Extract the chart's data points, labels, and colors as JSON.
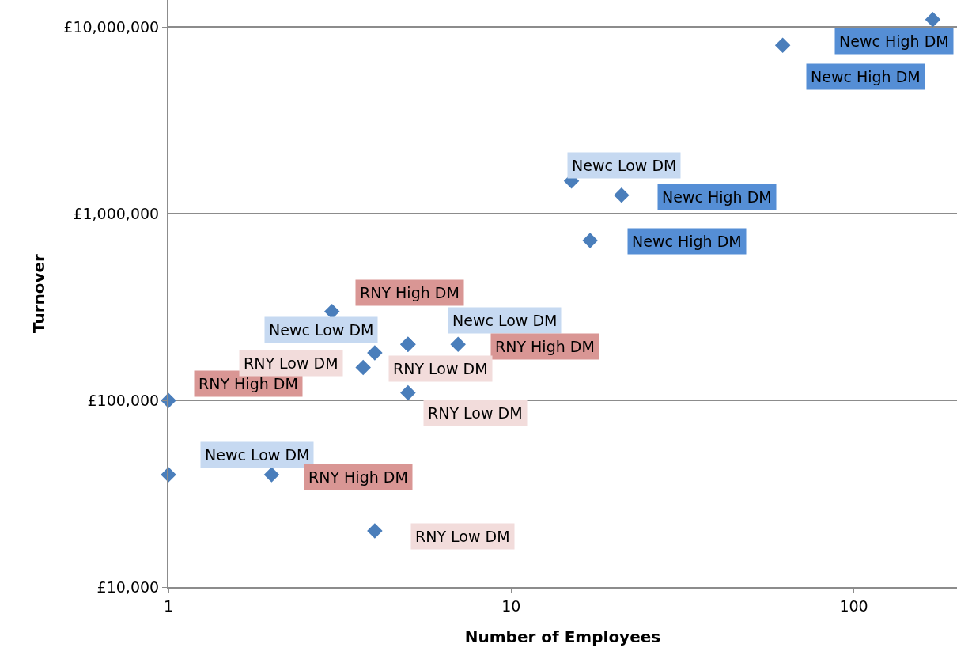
{
  "chart_data": {
    "type": "scatter",
    "xlabel": "Number of Employees",
    "ylabel": "Turnover",
    "log": "xy",
    "grid": "y",
    "marker": "diamond",
    "xlim": [
      1,
      200
    ],
    "xticks": [
      1,
      10,
      100
    ],
    "ylim": [
      10000,
      14000000
    ],
    "yticks": [
      {
        "value": 10000,
        "label": "£10,000"
      },
      {
        "value": 100000,
        "label": "£100,000"
      },
      {
        "value": 1000000,
        "label": "£1,000,000"
      },
      {
        "value": 10000000,
        "label": "£10,000,000"
      }
    ],
    "series": [
      {
        "name": "Newc High DM",
        "color": "#4a7ebb",
        "x": [
          170,
          62,
          21,
          17
        ],
        "values": [
          11000000,
          8000000,
          1260000,
          720000
        ]
      },
      {
        "name": "Newc Low DM",
        "color": "#4a7ebb",
        "x": [
          15,
          5,
          5,
          1
        ],
        "values": [
          1500000,
          200000,
          200000,
          40000
        ]
      },
      {
        "name": "RNY High DM",
        "color": "#4a7ebb",
        "x": [
          3,
          7,
          1,
          2
        ],
        "values": [
          300000,
          200000,
          100000,
          40000
        ]
      },
      {
        "name": "RNY Low DM",
        "color": "#4a7ebb",
        "x": [
          4,
          3.7,
          5,
          4
        ],
        "values": [
          180000,
          150000,
          110000,
          20000
        ]
      }
    ]
  }
}
